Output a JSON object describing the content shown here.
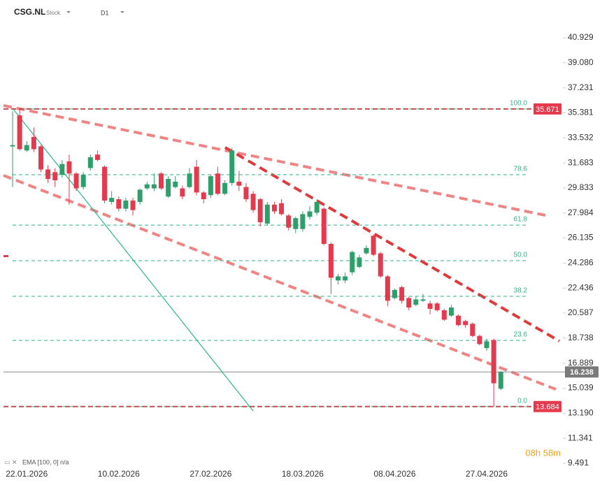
{
  "chart_data": {
    "type": "candlestick",
    "title": "CSG.NL",
    "subtitle": "Stock",
    "timeframe": "D1",
    "indicator": "EMA [100, 0] n/a",
    "timer": "08h 58m",
    "categories": [
      null,
      null,
      "22.01.2026",
      null,
      null,
      null,
      null,
      null,
      null,
      null,
      null,
      null,
      null,
      null,
      null,
      "10.02.2026",
      null,
      null,
      null,
      null,
      null,
      null,
      null,
      null,
      null,
      null,
      null,
      null,
      "27.02.2026",
      null,
      null,
      null,
      null,
      null,
      null,
      null,
      null,
      null,
      null,
      null,
      null,
      "18.03.2026",
      null,
      null,
      null,
      null,
      null,
      null,
      null,
      null,
      null,
      null,
      null,
      null,
      "08.04.2026",
      null,
      null,
      null,
      null,
      null,
      null,
      null,
      null,
      null,
      null,
      null,
      null,
      "27.04.2026",
      null,
      null
    ],
    "open": [
      32.9,
      35.2,
      32.6,
      33.6,
      32.9,
      31.2,
      31.0,
      30.8,
      31.8,
      30.9,
      29.9,
      31.3,
      32.3,
      31.4,
      28.8,
      29.0,
      28.3,
      28.9,
      28.8,
      29.8,
      29.8,
      30.9,
      29.2,
      29.9,
      29.8,
      29.9,
      31.4,
      29.5,
      29.3,
      30.9,
      29.4,
      30.2,
      30.3,
      29.9,
      29.4,
      29.0,
      27.2,
      28.6,
      28.7,
      27.8,
      26.8,
      26.8,
      27.7,
      28.0,
      28.3,
      25.7,
      23.0,
      23.0,
      23.6,
      24.0,
      25.0,
      26.3,
      25.0,
      23.3,
      21.7,
      22.5,
      21.7,
      21.2,
      21.5,
      21.3,
      21.3,
      20.8,
      20.4,
      20.4,
      20.0,
      19.8,
      18.9,
      18.0,
      18.6,
      15.0
    ],
    "high": [
      35.5,
      35.671,
      33.3,
      34.3,
      33.0,
      31.5,
      31.3,
      31.9,
      32.3,
      31.0,
      31.0,
      32.3,
      32.6,
      31.5,
      29.6,
      29.2,
      29.1,
      29.1,
      29.8,
      30.3,
      30.9,
      31.0,
      30.7,
      30.7,
      30.0,
      31.3,
      31.9,
      29.6,
      30.8,
      31.4,
      30.4,
      32.8,
      31.1,
      30.2,
      29.6,
      29.1,
      28.8,
      28.8,
      29.0,
      27.9,
      27.7,
      28.1,
      28.5,
      29.0,
      28.4,
      25.8,
      23.5,
      23.6,
      25.2,
      24.9,
      25.6,
      26.4,
      25.1,
      23.4,
      22.4,
      22.6,
      21.8,
      21.8,
      22.0,
      21.5,
      21.4,
      20.9,
      21.2,
      20.5,
      20.1,
      19.9,
      19.0,
      18.7,
      18.7,
      16.3
    ],
    "low": [
      29.9,
      32.6,
      32.5,
      32.5,
      31.0,
      30.2,
      29.9,
      30.6,
      28.6,
      29.6,
      29.7,
      31.1,
      31.8,
      28.7,
      28.6,
      28.1,
      28.1,
      27.8,
      28.6,
      29.7,
      29.6,
      29.7,
      29.1,
      29.8,
      29.0,
      29.8,
      29.3,
      28.7,
      29.1,
      29.3,
      29.3,
      30.0,
      29.6,
      28.8,
      28.0,
      27.0,
      27.1,
      27.9,
      27.8,
      26.7,
      26.5,
      26.6,
      27.5,
      27.8,
      25.6,
      22.0,
      22.7,
      22.8,
      23.4,
      23.9,
      24.9,
      24.8,
      23.2,
      21.1,
      21.6,
      21.3,
      20.8,
      21.1,
      21.4,
      20.5,
      20.7,
      20.0,
      20.3,
      19.6,
      19.5,
      18.8,
      18.2,
      17.8,
      13.684,
      14.9
    ],
    "close": [
      33.0,
      32.7,
      33.0,
      32.7,
      31.2,
      30.5,
      30.4,
      31.6,
      30.9,
      29.8,
      30.8,
      32.1,
      31.9,
      28.9,
      29.1,
      28.3,
      28.9,
      28.2,
      29.7,
      30.1,
      30.1,
      29.8,
      30.5,
      30.3,
      29.2,
      30.9,
      29.5,
      29.0,
      30.7,
      29.4,
      30.2,
      32.6,
      30.0,
      29.0,
      28.2,
      27.3,
      28.6,
      28.1,
      27.9,
      26.9,
      27.6,
      27.9,
      28.1,
      28.8,
      25.7,
      23.2,
      23.3,
      23.3,
      25.1,
      24.7,
      25.4,
      24.9,
      23.3,
      21.5,
      22.3,
      21.5,
      21.0,
      21.6,
      21.6,
      20.9,
      20.8,
      20.1,
      21.0,
      19.7,
      19.7,
      18.9,
      18.3,
      18.5,
      15.4,
      16.238
    ],
    "up_color": "#2e9e6b",
    "down_color": "#e5394d",
    "ylim": [
      9.2,
      43.5
    ],
    "yticks": [
      40.929,
      {
        "value": 39.08,
        "label": "39.080"
      },
      37.231,
      35.381,
      33.532,
      31.683,
      29.833,
      27.984,
      26.135,
      24.286,
      22.436,
      20.587,
      18.738,
      16.889,
      15.039,
      {
        "value": 13.19,
        "label": "13.190"
      },
      11.341,
      9.491
    ],
    "fib_levels": [
      {
        "label": "100.0",
        "value": 35.671
      },
      {
        "label": "78.6",
        "value": 30.81
      },
      {
        "label": "61.8",
        "value": 27.09
      },
      {
        "label": "50.0",
        "value": 24.46
      },
      {
        "label": "38.2",
        "value": 21.83
      },
      {
        "label": "23.6",
        "value": 18.57
      },
      {
        "label": "0.0",
        "value": 13.684
      }
    ],
    "price_markers": [
      {
        "value": 35.671,
        "color": "#e5394d"
      },
      {
        "value": 13.684,
        "color": "#e5394d"
      },
      {
        "value": 16.238,
        "color": "#7a7a7a"
      }
    ]
  }
}
